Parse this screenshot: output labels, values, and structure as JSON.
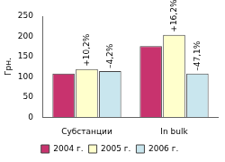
{
  "chart_data": {
    "type": "bar",
    "y_label": "Грн.",
    "categories": [
      "Субстанции",
      "In bulk"
    ],
    "series": [
      {
        "name": "2004 г.",
        "color": "#c8336e",
        "values": [
          108,
          176
        ]
      },
      {
        "name": "2005 г.",
        "color": "#ffffcc",
        "values": [
          119,
          204
        ]
      },
      {
        "name": "2006 г.",
        "color": "#c9e6ee",
        "values": [
          114,
          108
        ]
      }
    ],
    "annotations": [
      {
        "category": "Субстанции",
        "series": "2005 г.",
        "text": "+10,2%"
      },
      {
        "category": "Субстанции",
        "series": "2006 г.",
        "text": "–4,2%"
      },
      {
        "category": "In bulk",
        "series": "2005 г.",
        "text": "+16,2%"
      },
      {
        "category": "In bulk",
        "series": "2006 г.",
        "text": "–47,1%"
      }
    ],
    "ylim": [
      0,
      250
    ],
    "yticks": [
      0,
      50,
      100,
      150,
      200,
      250
    ],
    "grid": false,
    "legend": "bottom"
  }
}
